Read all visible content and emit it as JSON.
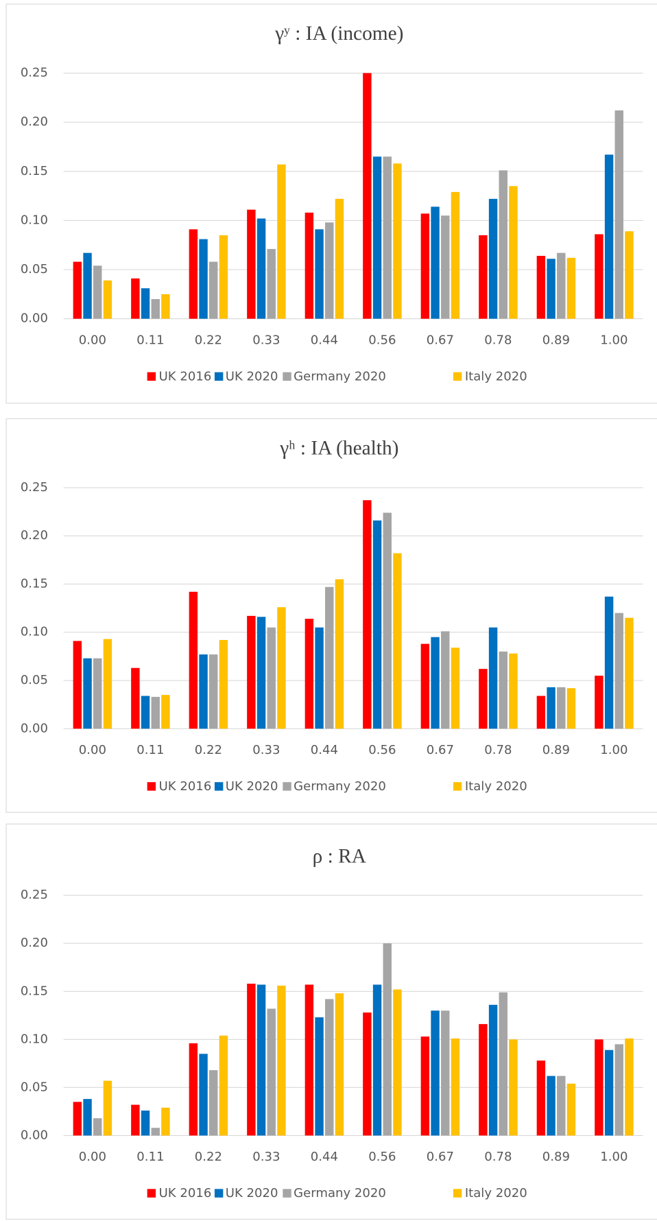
{
  "chart_data": [
    {
      "type": "bar",
      "title": "γʸ : IA (income)",
      "categories": [
        "0.00",
        "0.11",
        "0.22",
        "0.33",
        "0.44",
        "0.56",
        "0.67",
        "0.78",
        "0.89",
        "1.00"
      ],
      "series": [
        {
          "name": "UK 2016",
          "color": "#ff0000",
          "values": [
            0.058,
            0.041,
            0.091,
            0.111,
            0.108,
            0.25,
            0.107,
            0.085,
            0.064,
            0.086
          ]
        },
        {
          "name": "UK 2020",
          "color": "#0070c0",
          "values": [
            0.067,
            0.031,
            0.081,
            0.102,
            0.091,
            0.165,
            0.114,
            0.122,
            0.061,
            0.167
          ]
        },
        {
          "name": "Germany 2020",
          "color": "#a5a5a5",
          "values": [
            0.054,
            0.02,
            0.058,
            0.071,
            0.098,
            0.165,
            0.105,
            0.151,
            0.067,
            0.212
          ]
        },
        {
          "name": "Italy 2020",
          "color": "#ffc000",
          "values": [
            0.039,
            0.025,
            0.085,
            0.157,
            0.122,
            0.158,
            0.129,
            0.135,
            0.062,
            0.089
          ]
        }
      ],
      "ylim": [
        0,
        0.25
      ],
      "yticks": [
        {
          "value": 0,
          "label": "0.00"
        },
        {
          "value": 0.05,
          "label": "0.05"
        },
        {
          "value": 0.1,
          "label": "0.10"
        },
        {
          "value": 0.15,
          "label": "0.15"
        },
        {
          "value": 0.2,
          "label": "0.20"
        },
        {
          "value": 0.25,
          "label": "0.25"
        }
      ],
      "grid": true,
      "legend": "bottom"
    },
    {
      "type": "bar",
      "title": "γʰ : IA (health)",
      "categories": [
        "0.00",
        "0.11",
        "0.22",
        "0.33",
        "0.44",
        "0.56",
        "0.67",
        "0.78",
        "0.89",
        "1.00"
      ],
      "series": [
        {
          "name": "UK 2016",
          "color": "#ff0000",
          "values": [
            0.091,
            0.063,
            0.142,
            0.117,
            0.114,
            0.237,
            0.088,
            0.062,
            0.034,
            0.055
          ]
        },
        {
          "name": "UK 2020",
          "color": "#0070c0",
          "values": [
            0.073,
            0.034,
            0.077,
            0.116,
            0.105,
            0.216,
            0.095,
            0.105,
            0.043,
            0.137
          ]
        },
        {
          "name": "Germany 2020",
          "color": "#a5a5a5",
          "values": [
            0.073,
            0.033,
            0.077,
            0.105,
            0.147,
            0.224,
            0.101,
            0.08,
            0.043,
            0.12
          ]
        },
        {
          "name": "Italy 2020",
          "color": "#ffc000",
          "values": [
            0.093,
            0.035,
            0.092,
            0.126,
            0.155,
            0.182,
            0.084,
            0.078,
            0.042,
            0.115
          ]
        }
      ],
      "ylim": [
        0,
        0.25
      ],
      "yticks": [
        {
          "value": 0,
          "label": "0.00"
        },
        {
          "value": 0.05,
          "label": "0.05"
        },
        {
          "value": 0.1,
          "label": "0.10"
        },
        {
          "value": 0.15,
          "label": "0.15"
        },
        {
          "value": 0.2,
          "label": "0.20"
        },
        {
          "value": 0.25,
          "label": "0.25"
        }
      ],
      "grid": true,
      "legend": "bottom"
    },
    {
      "type": "bar",
      "title": "ρ : RA",
      "categories": [
        "0.00",
        "0.11",
        "0.22",
        "0.33",
        "0.44",
        "0.56",
        "0.67",
        "0.78",
        "0.89",
        "1.00"
      ],
      "series": [
        {
          "name": "UK 2016",
          "color": "#ff0000",
          "values": [
            0.035,
            0.032,
            0.096,
            0.158,
            0.157,
            0.128,
            0.103,
            0.116,
            0.078,
            0.1
          ]
        },
        {
          "name": "UK 2020",
          "color": "#0070c0",
          "values": [
            0.038,
            0.026,
            0.085,
            0.157,
            0.123,
            0.157,
            0.13,
            0.136,
            0.062,
            0.089
          ]
        },
        {
          "name": "Germany 2020",
          "color": "#a5a5a5",
          "values": [
            0.018,
            0.008,
            0.068,
            0.132,
            0.142,
            0.2,
            0.13,
            0.149,
            0.062,
            0.095
          ]
        },
        {
          "name": "Italy 2020",
          "color": "#ffc000",
          "values": [
            0.057,
            0.029,
            0.104,
            0.156,
            0.148,
            0.152,
            0.101,
            0.1,
            0.054,
            0.101
          ]
        }
      ],
      "ylim": [
        0,
        0.25
      ],
      "yticks": [
        {
          "value": 0,
          "label": "0.00"
        },
        {
          "value": 0.05,
          "label": "0.05"
        },
        {
          "value": 0.1,
          "label": "0.10"
        },
        {
          "value": 0.15,
          "label": "0.15"
        },
        {
          "value": 0.2,
          "label": "0.20"
        },
        {
          "value": 0.25,
          "label": "0.25"
        }
      ],
      "grid": true,
      "legend": "bottom"
    }
  ]
}
